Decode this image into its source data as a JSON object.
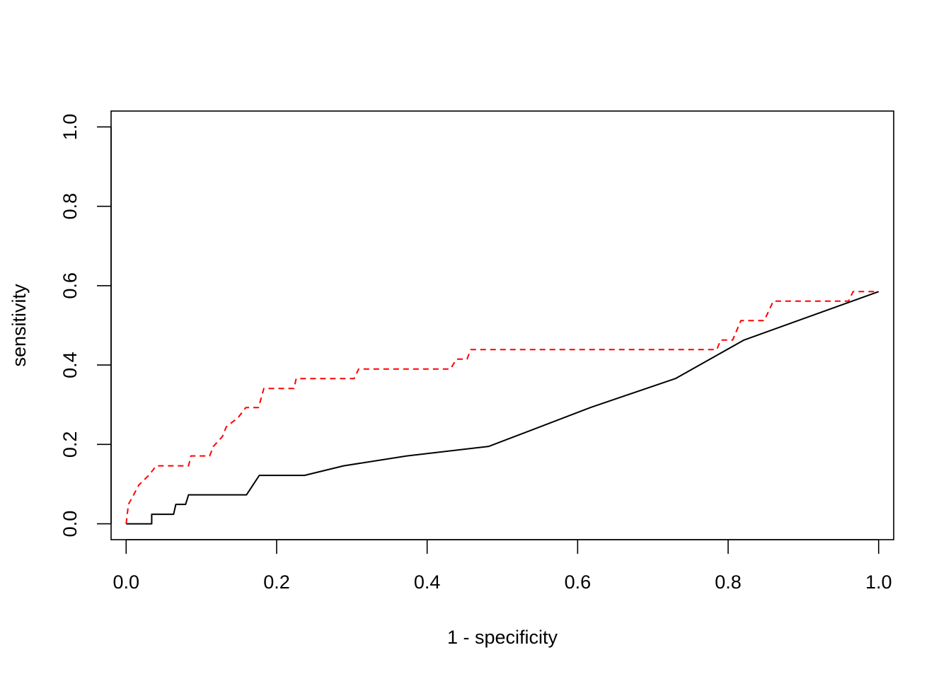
{
  "chart_data": {
    "type": "line",
    "title": "",
    "xlabel": "1 - specificity",
    "ylabel": "sensitivity",
    "xlim": [
      -0.02,
      1.02
    ],
    "ylim": [
      -0.04,
      1.04
    ],
    "x_ticks": [
      "0.0",
      "0.2",
      "0.4",
      "0.6",
      "0.8",
      "1.0"
    ],
    "y_ticks": [
      "0.0",
      "0.2",
      "0.4",
      "0.6",
      "0.8",
      "1.0"
    ],
    "grid": false,
    "legend": "none",
    "series": [
      {
        "color": "#000000",
        "line_style": "solid",
        "points": [
          [
            0.0,
            0.0
          ],
          [
            0.034,
            0.0
          ],
          [
            0.034,
            0.024
          ],
          [
            0.063,
            0.024
          ],
          [
            0.066,
            0.049
          ],
          [
            0.079,
            0.049
          ],
          [
            0.083,
            0.073
          ],
          [
            0.16,
            0.073
          ],
          [
            0.177,
            0.122
          ],
          [
            0.237,
            0.122
          ],
          [
            0.289,
            0.146
          ],
          [
            0.373,
            0.171
          ],
          [
            0.482,
            0.195
          ],
          [
            0.617,
            0.293
          ],
          [
            0.73,
            0.366
          ],
          [
            0.821,
            0.463
          ],
          [
            1.0,
            0.585
          ]
        ]
      },
      {
        "color": "#ff0000",
        "line_style": "dashed",
        "points": [
          [
            0.0,
            0.0
          ],
          [
            0.003,
            0.049
          ],
          [
            0.01,
            0.073
          ],
          [
            0.017,
            0.098
          ],
          [
            0.03,
            0.122
          ],
          [
            0.04,
            0.146
          ],
          [
            0.083,
            0.146
          ],
          [
            0.086,
            0.171
          ],
          [
            0.111,
            0.171
          ],
          [
            0.116,
            0.195
          ],
          [
            0.128,
            0.22
          ],
          [
            0.133,
            0.244
          ],
          [
            0.149,
            0.268
          ],
          [
            0.159,
            0.293
          ],
          [
            0.176,
            0.293
          ],
          [
            0.183,
            0.341
          ],
          [
            0.223,
            0.341
          ],
          [
            0.226,
            0.366
          ],
          [
            0.303,
            0.366
          ],
          [
            0.309,
            0.39
          ],
          [
            0.431,
            0.39
          ],
          [
            0.439,
            0.415
          ],
          [
            0.453,
            0.415
          ],
          [
            0.458,
            0.439
          ],
          [
            0.785,
            0.439
          ],
          [
            0.79,
            0.463
          ],
          [
            0.806,
            0.463
          ],
          [
            0.817,
            0.512
          ],
          [
            0.848,
            0.512
          ],
          [
            0.86,
            0.561
          ],
          [
            0.96,
            0.561
          ],
          [
            0.966,
            0.585
          ],
          [
            1.0,
            0.585
          ]
        ]
      }
    ]
  }
}
